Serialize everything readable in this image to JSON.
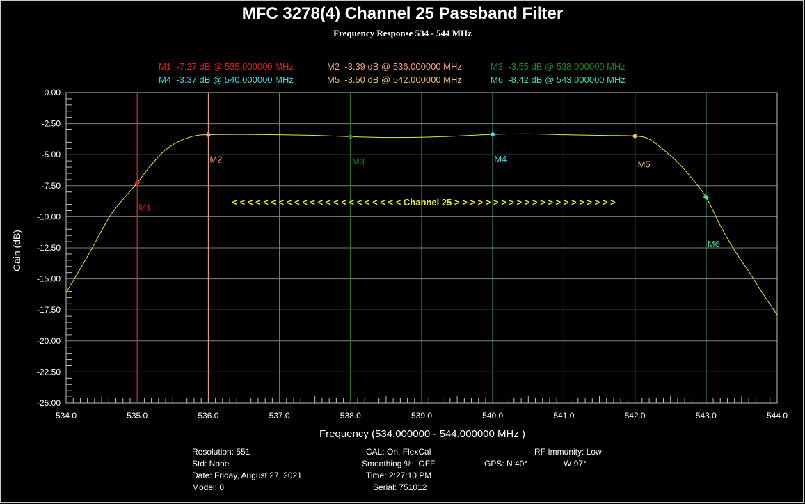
{
  "title": "MFC 3278(4) Channel 25 Passband Filter",
  "subtitle": "Frequency Response 534 - 544 MHz",
  "markers_legend": [
    {
      "text": "M1  -7.27 dB @ 535.000000 MHz",
      "color": "#e02020"
    },
    {
      "text": "M2  -3.39 dB @ 536.000000 MHz",
      "color": "#f0a088"
    },
    {
      "text": "M3  -3.55 dB @ 538.000000 MHz",
      "color": "#208a20"
    },
    {
      "text": "M4  -3.37 dB @ 540.000000 MHz",
      "color": "#40d8e0"
    },
    {
      "text": "M5  -3.50 dB @ 542.000000 MHz",
      "color": "#e8c060"
    },
    {
      "text": "M6  -8.42 dB @ 543.000000 MHz",
      "color": "#40e0a0"
    }
  ],
  "band_annotation": "< < < < < < < < < < < < < < < < < < < < < < Channel 25 > > > > > > > > > > > > > > > > > > > > >",
  "chart_data": {
    "type": "line",
    "xlabel": "Frequency (534.000000 - 544.000000 MHz )",
    "ylabel": "Gain (dB)",
    "xlim": [
      534.0,
      544.0
    ],
    "ylim": [
      -25.0,
      0.0
    ],
    "xticks": [
      "534.0",
      "535.0",
      "536.0",
      "537.0",
      "538.0",
      "539.0",
      "540.0",
      "541.0",
      "542.0",
      "543.0",
      "544.0"
    ],
    "yticks": [
      "0.00",
      "-2.50",
      "-5.00",
      "-7.50",
      "-10.00",
      "-12.50",
      "-15.00",
      "-17.50",
      "-20.00",
      "-22.50",
      "-25.00"
    ],
    "grid": true,
    "series": [
      {
        "color": "#e8e830",
        "x": [
          534.0,
          534.3,
          534.6,
          534.8,
          535.0,
          535.2,
          535.4,
          535.6,
          535.8,
          536.0,
          536.5,
          537.0,
          537.5,
          538.0,
          538.5,
          539.0,
          539.5,
          540.0,
          540.5,
          541.0,
          541.5,
          542.0,
          542.2,
          542.4,
          542.6,
          542.8,
          543.0,
          543.2,
          543.4,
          543.6,
          543.8,
          544.0
        ],
        "values": [
          -16.1,
          -13.2,
          -10.1,
          -8.6,
          -7.27,
          -5.8,
          -4.6,
          -3.9,
          -3.5,
          -3.39,
          -3.37,
          -3.4,
          -3.45,
          -3.55,
          -3.62,
          -3.6,
          -3.5,
          -3.37,
          -3.33,
          -3.4,
          -3.45,
          -3.5,
          -3.75,
          -4.6,
          -5.6,
          -6.9,
          -8.42,
          -10.7,
          -12.7,
          -14.4,
          -16.2,
          -17.9
        ]
      }
    ],
    "markers": [
      {
        "name": "M1",
        "x": 535.0,
        "y": -7.27,
        "color": "#e02020"
      },
      {
        "name": "M2",
        "x": 536.0,
        "y": -3.39,
        "color": "#f0a088"
      },
      {
        "name": "M3",
        "x": 538.0,
        "y": -3.55,
        "color": "#208a20"
      },
      {
        "name": "M4",
        "x": 540.0,
        "y": -3.37,
        "color": "#40d8e0"
      },
      {
        "name": "M5",
        "x": 542.0,
        "y": -3.5,
        "color": "#e8c060"
      },
      {
        "name": "M6",
        "x": 543.0,
        "y": -8.42,
        "color": "#40e0a0"
      }
    ]
  },
  "info": {
    "resolution": "Resolution: 551",
    "std": "Std: None",
    "date": "Date: Friday, August 27, 2021",
    "model": "Model: 0",
    "cal": "CAL: On, FlexCal",
    "smoothing": "Smoothing %:  OFF",
    "time": "Time: 2:27:10 PM",
    "serial": "Serial: 751012",
    "rf_immunity": "RF Immunity: Low",
    "gps_lat": "GPS: N 40°",
    "gps_lon": "W 97°"
  }
}
